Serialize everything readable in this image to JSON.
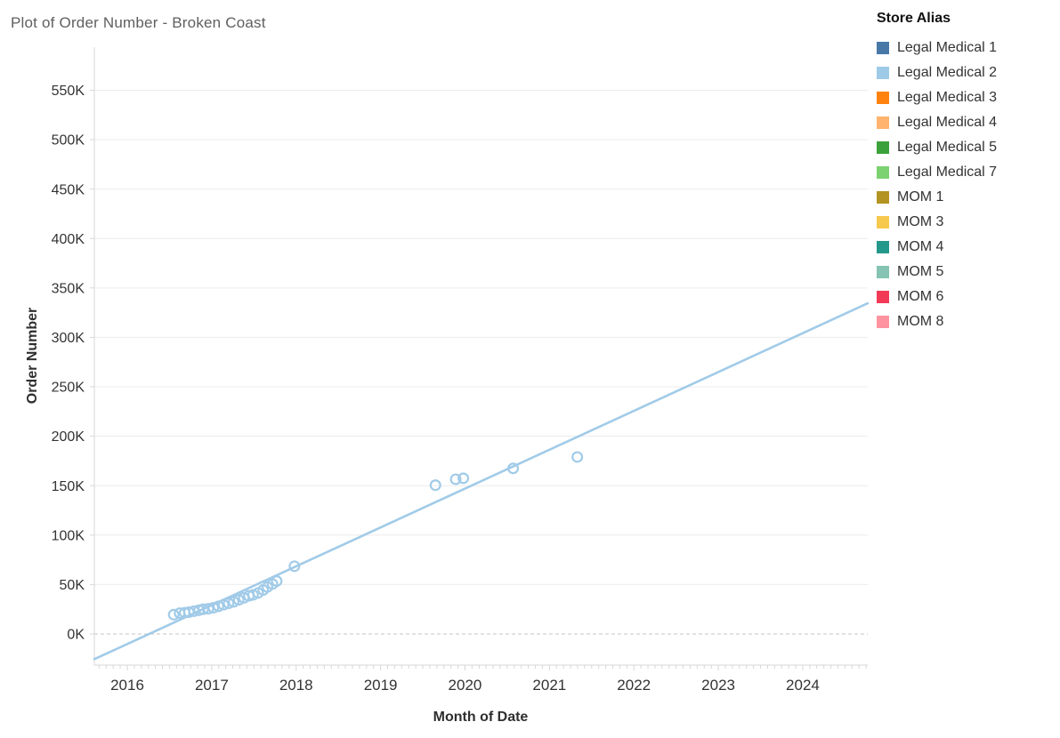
{
  "title": "Plot of Order Number - Broken Coast",
  "legend": {
    "title": "Store Alias",
    "items": [
      {
        "label": "Legal Medical 1",
        "color": "#4878a8"
      },
      {
        "label": "Legal Medical 2",
        "color": "#9ecae8"
      },
      {
        "label": "Legal Medical 3",
        "color": "#ff820e"
      },
      {
        "label": "Legal Medical 4",
        "color": "#ffb36e"
      },
      {
        "label": "Legal Medical 5",
        "color": "#3ba23b"
      },
      {
        "label": "Legal Medical 7",
        "color": "#7cd171"
      },
      {
        "label": "MOM 1",
        "color": "#b39422"
      },
      {
        "label": "MOM 3",
        "color": "#f6c84e"
      },
      {
        "label": "MOM 4",
        "color": "#24988b"
      },
      {
        "label": "MOM 5",
        "color": "#85c3b2"
      },
      {
        "label": "MOM 6",
        "color": "#f23a57"
      },
      {
        "label": "MOM 8",
        "color": "#ff93a0"
      }
    ]
  },
  "chart_data": {
    "type": "scatter",
    "title": "Plot of Order Number - Broken Coast",
    "xlabel": "Month of Date",
    "ylabel": "Order Number",
    "series_name": "Legal Medical 2",
    "marker_color": "#a1cbe8",
    "x_unit": "decimal_year",
    "xlim": [
      2015.61,
      2024.77
    ],
    "ylim": [
      -31500,
      593600
    ],
    "x_ticks": [
      2016,
      2017,
      2018,
      2019,
      2020,
      2021,
      2022,
      2023,
      2024
    ],
    "x_tick_labels": [
      "2016",
      "2017",
      "2018",
      "2019",
      "2020",
      "2021",
      "2022",
      "2023",
      "2024"
    ],
    "minor_tick_interval_months": 1,
    "y_ticks": [
      0,
      50000,
      100000,
      150000,
      200000,
      250000,
      300000,
      350000,
      400000,
      450000,
      500000,
      550000
    ],
    "y_tick_labels": [
      "0K",
      "50K",
      "100K",
      "150K",
      "200K",
      "250K",
      "300K",
      "350K",
      "400K",
      "450K",
      "500K",
      "550K"
    ],
    "grid": {
      "horizontal": true,
      "vertical": false,
      "zero_line_dashed": true
    },
    "legend_position": "top-right",
    "points": [
      [
        2016.55,
        19500
      ],
      [
        2016.62,
        21000
      ],
      [
        2016.68,
        21500
      ],
      [
        2016.73,
        22000
      ],
      [
        2016.79,
        23000
      ],
      [
        2016.85,
        24000
      ],
      [
        2016.9,
        25000
      ],
      [
        2016.96,
        25500
      ],
      [
        2017.02,
        26500
      ],
      [
        2017.08,
        28000
      ],
      [
        2017.14,
        29500
      ],
      [
        2017.2,
        31000
      ],
      [
        2017.26,
        32500
      ],
      [
        2017.32,
        34500
      ],
      [
        2017.38,
        36500
      ],
      [
        2017.44,
        38500
      ],
      [
        2017.49,
        39500
      ],
      [
        2017.55,
        41500
      ],
      [
        2017.61,
        44500
      ],
      [
        2017.66,
        47500
      ],
      [
        2017.72,
        50500
      ],
      [
        2017.77,
        53500
      ],
      [
        2017.98,
        68500
      ],
      [
        2019.65,
        150500
      ],
      [
        2019.89,
        156500
      ],
      [
        2019.98,
        157500
      ],
      [
        2020.57,
        167500
      ],
      [
        2021.33,
        179000
      ]
    ],
    "trend_line": {
      "color": "#a1cbe8",
      "from": [
        2015.61,
        -25500
      ],
      "to": [
        2024.77,
        334500
      ]
    }
  }
}
